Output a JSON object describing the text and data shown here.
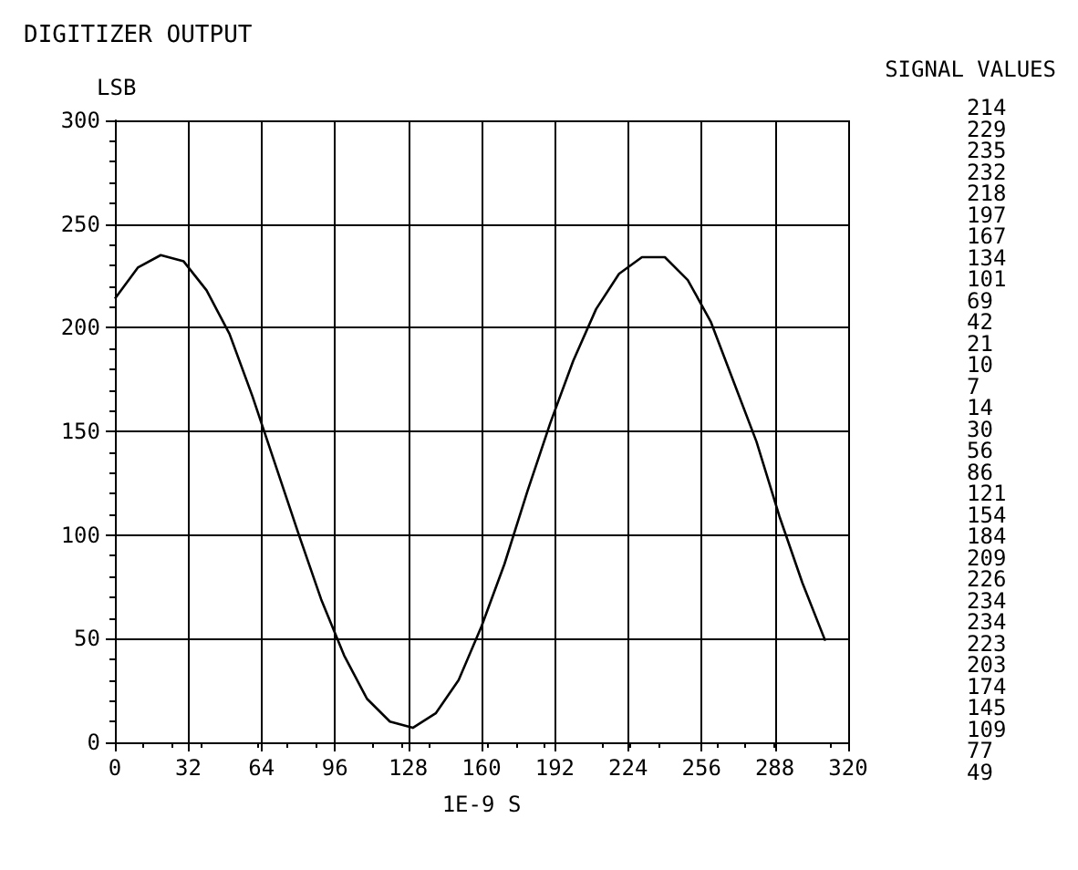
{
  "chart_data": {
    "type": "line",
    "title": "DIGITIZER OUTPUT",
    "xlabel": "1E-9 S",
    "ylabel": "LSB",
    "annotations": [
      "SIGNAL VALUES",
      "214",
      "229",
      "235",
      "232",
      "218",
      "197",
      "167",
      "134",
      "101",
      "69",
      "42",
      "21",
      "10",
      "7",
      "14",
      "30",
      "56",
      "86",
      "121",
      "154",
      "184",
      "209",
      "226",
      "234",
      "234",
      "223",
      "203",
      "174",
      "145",
      "109",
      "77",
      "49"
    ],
    "x": [
      0,
      10,
      20,
      30,
      40,
      50,
      60,
      70,
      80,
      90,
      100,
      110,
      120,
      130,
      140,
      150,
      160,
      170,
      180,
      190,
      200,
      210,
      220,
      230,
      240,
      250,
      260,
      270,
      280,
      290,
      300,
      310
    ],
    "series": [
      {
        "color": "#000000",
        "values": [
          214,
          229,
          235,
          232,
          218,
          197,
          167,
          134,
          101,
          69,
          42,
          21,
          10,
          7,
          14,
          30,
          56,
          86,
          121,
          154,
          184,
          209,
          226,
          234,
          234,
          223,
          203,
          174,
          145,
          109,
          77,
          49
        ]
      }
    ],
    "xlim": [
      0,
      320
    ],
    "xticks": [
      0,
      32,
      64,
      96,
      128,
      160,
      192,
      224,
      256,
      288,
      320
    ],
    "ylim": [
      0,
      300
    ],
    "yticks": [
      0,
      50,
      100,
      150,
      200,
      250,
      300
    ],
    "grid": true,
    "marker": "none",
    "line_style": "solid"
  }
}
